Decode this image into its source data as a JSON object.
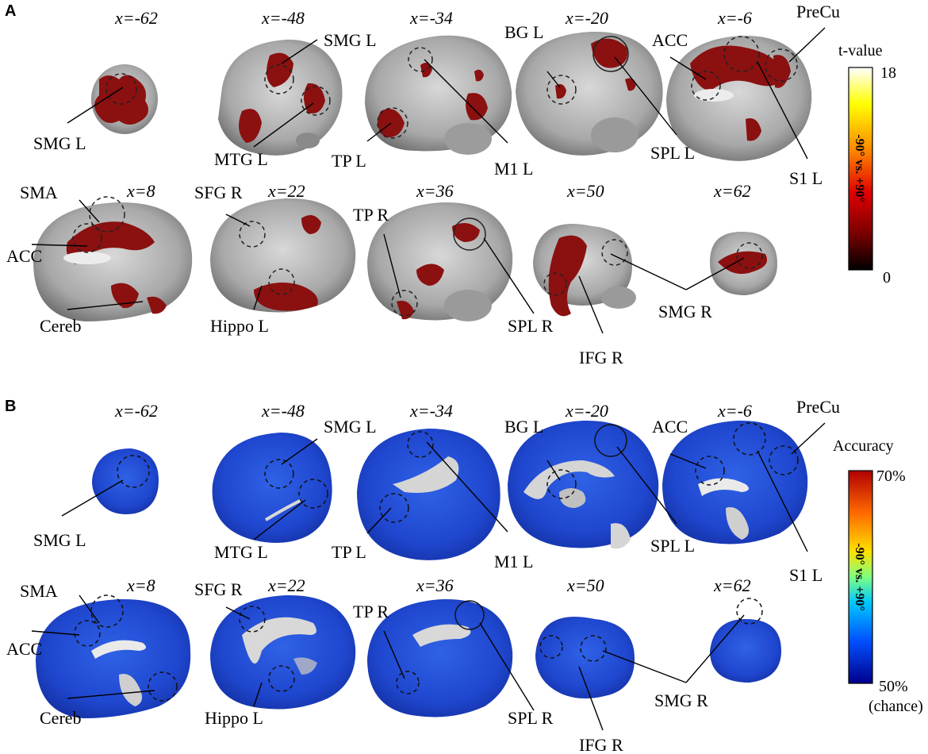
{
  "panel_a": {
    "letter": "A",
    "slices": [
      "x=-62",
      "x=-48",
      "x=-34",
      "x=-20",
      "x=-6",
      "x=8",
      "x=22",
      "x=36",
      "x=50",
      "x=62"
    ],
    "labels": [
      "SMG L",
      "SMG L",
      "MTG L",
      "TP L",
      "M1 L",
      "BG L",
      "SPL L",
      "ACC",
      "PreCu",
      "S1 L",
      "SMA",
      "ACC",
      "Cereb",
      "SFG R",
      "Hippo L",
      "TP R",
      "SPL R",
      "IFG R",
      "SMG R"
    ],
    "colorbar": {
      "title": "t-value",
      "max": "18",
      "min": "0",
      "side_label": "-90° vs. +90°",
      "colors": [
        "#ffffff",
        "#ffff00",
        "#ff8c00",
        "#e00000",
        "#8b0000",
        "#000000"
      ]
    }
  },
  "panel_b": {
    "letter": "B",
    "slices": [
      "x=-62",
      "x=-48",
      "x=-34",
      "x=-20",
      "x=-6",
      "x=8",
      "x=22",
      "x=36",
      "x=50",
      "x=62"
    ],
    "labels": [
      "SMG L",
      "SMG L",
      "MTG L",
      "TP L",
      "M1 L",
      "BG L",
      "SPL L",
      "ACC",
      "PreCu",
      "S1 L",
      "SMA",
      "ACC",
      "Cereb",
      "SFG R",
      "Hippo L",
      "TP R",
      "SPL R",
      "IFG R",
      "SMG R"
    ],
    "colorbar": {
      "title": "Accuracy",
      "max": "70%",
      "min": "50%",
      "min_note": "(chance)",
      "side_label": "-90° vs. +90°",
      "colors": [
        "#b00000",
        "#ff6a00",
        "#ffe000",
        "#7fff7f",
        "#00c8ff",
        "#0050ff",
        "#00008b"
      ]
    }
  },
  "colors": {
    "activation": "#8b1010",
    "brain_gray": "#a9a9a9",
    "accuracy_blue": "#1a3fd0"
  }
}
